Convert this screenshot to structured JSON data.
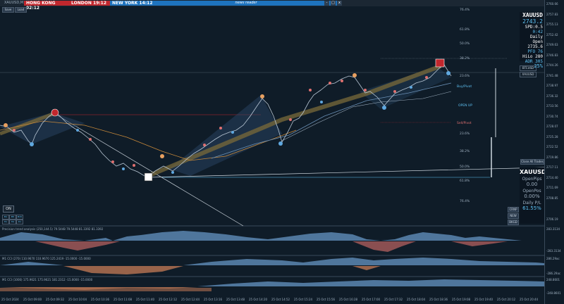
{
  "header": {
    "symbol": "XAUUSD,M1",
    "sessions": [
      {
        "name": "HONG KONG",
        "time": "02:12"
      },
      {
        "name": "LONDON",
        "time": "19:12"
      },
      {
        "name": "NEW YORK",
        "time": "14:12"
      }
    ],
    "news_label": "news reader",
    "btn_min": "-",
    "btn_max": "□",
    "btn_close": "x",
    "mini_buttons": [
      "Save",
      "Load"
    ]
  },
  "info_panel": {
    "symbol": "XAUUSD",
    "price": "2743.2",
    "spd": "SPD:0.5",
    "timer": "0:42",
    "daily_open_label": "Daily Open",
    "daily_open": "2735.6",
    "pfo": "PFO   76",
    "hilo": "HiLo  280",
    "adr": "ADR  305",
    "adr_pct": "25%"
  },
  "symbol_tags": [
    "BTCUSD",
    "XAUUSD"
  ],
  "close_all_label": "Close All Trades",
  "pnl_panel": {
    "title": "XAUUSD",
    "open_pips_label": "OpenPips",
    "open_pips": "0.00",
    "open_pos_label": "OpenPos",
    "open_pos": "0.00%",
    "daily_pl_label": "Daily P/L",
    "daily_pl": "61.55%"
  },
  "side_buttons": [
    "CRNP",
    "NEW",
    "BKGD"
  ],
  "on_label": "ON",
  "tf_boxes": [
    "M1",
    "M5",
    "M15",
    "H1",
    "H4",
    "D1"
  ],
  "fib_labels": [
    "76.4%",
    "61.8%",
    "50.0%",
    "38.2%",
    "23.6%",
    "Buy/Pivot",
    "OPEN UP",
    "Sell/Pivot",
    "23.6%",
    "38.2%",
    "50.0%",
    "61.8%",
    "76.4%"
  ],
  "price_axis": [
    "2760.66",
    "2757.83",
    "2755.13",
    "2752.42",
    "2749.63",
    "2746.83",
    "2744.26",
    "2741.48",
    "2738.97",
    "2736.32",
    "2733.56",
    "2730.74",
    "2728.07",
    "2725.28",
    "2722.52",
    "2719.86",
    "2717.11",
    "2714.40",
    "2711.69",
    "2708.85",
    "2706.19"
  ],
  "indicators": [
    {
      "label": "Precision trend analysis (250,144.5) 79.5448 79.5448 81.3392 81.3392",
      "axis_top": "283.3134",
      "axis_bottom": "-283.3134"
    },
    {
      "label": "M1 CCI (270) 110.9670 110.9670 125.2419 -15.0000 -15.0000",
      "axis_top": "286.29ac",
      "axis_bottom": "-286.29ac"
    },
    {
      "label": "M1 CCI (1000) 175.9621 175.9621 181.2312 -15.0000 -15.0000",
      "axis_top": "248.8601",
      "axis_bottom": "-248.8601"
    }
  ],
  "time_axis": [
    "25 Oct 2024",
    "25 Oct 09:00",
    "25 Oct 09:32",
    "25 Oct 10:04",
    "25 Oct 10:36",
    "25 Oct 11:08",
    "25 Oct 11:40",
    "25 Oct 12:12",
    "25 Oct 12:44",
    "25 Oct 13:16",
    "25 Oct 13:48",
    "25 Oct 14:20",
    "25 Oct 14:52",
    "25 Oct 15:24",
    "25 Oct 15:56",
    "25 Oct 16:28",
    "25 Oct 17:00",
    "25 Oct 17:32",
    "25 Oct 18:04",
    "25 Oct 18:36",
    "25 Oct 19:08",
    "25 Oct 19:40",
    "25 Oct 20:12",
    "25 Oct 20:44"
  ]
}
